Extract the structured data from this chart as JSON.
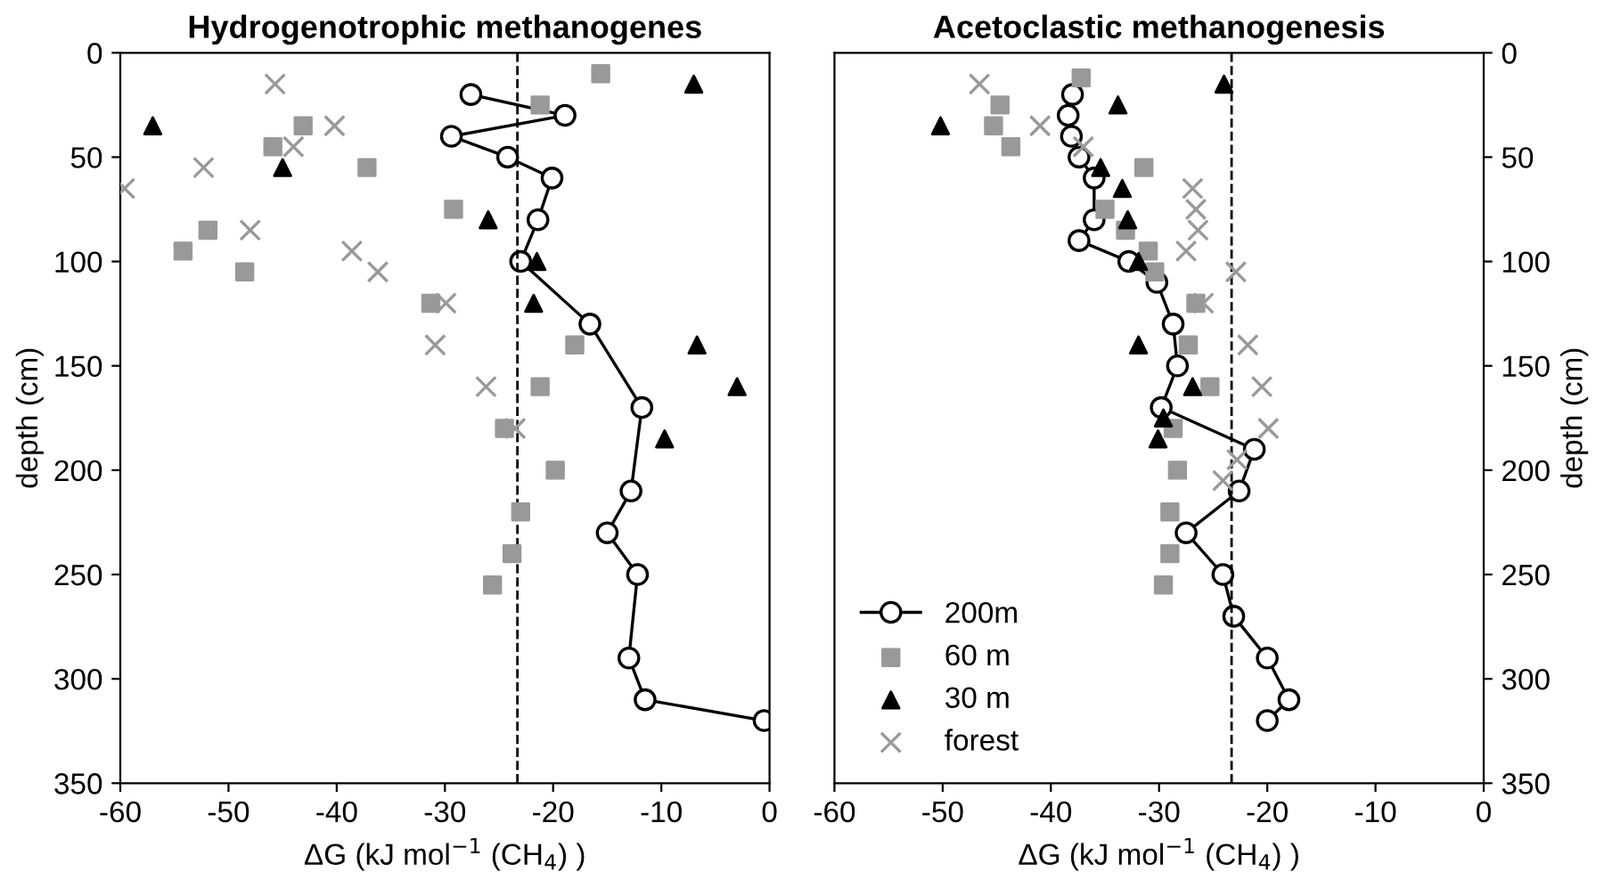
{
  "chart_data": [
    {
      "type": "scatter",
      "title": "Hydrogenotrophic methanogenes",
      "xlabel": "ΔG (kJ mol$^{−1}$ (CH$_{4}$) )",
      "ylabel": "depth (cm)",
      "xlim": [
        -60,
        0
      ],
      "xticks": [
        -60,
        -50,
        -40,
        -30,
        -20,
        -10,
        0
      ],
      "ylim": [
        350,
        0
      ],
      "yticks": [
        0,
        50,
        100,
        150,
        200,
        250,
        300,
        350
      ],
      "grid": false,
      "legend": false,
      "ref_lines": [
        {
          "axis": "x",
          "value": -23.3,
          "line_style": "dashed",
          "color": "#000000"
        }
      ],
      "series": [
        {
          "type": "line",
          "marker": "circle",
          "color": "#000000",
          "x": [
            -27.6,
            -18.9,
            -29.4,
            -24.2,
            -20.1,
            -21.4,
            -23.0,
            -16.6,
            -11.8,
            -12.8,
            -15.0,
            -12.2,
            -13,
            -11.5,
            -0.5
          ],
          "values": [
            20,
            30,
            40,
            50,
            60,
            80,
            100,
            130,
            170,
            210,
            230,
            250,
            290,
            310,
            320
          ]
        },
        {
          "marker": "square",
          "color": "#999999",
          "x": [
            -15.6,
            -21.2,
            -43.1,
            -45.9,
            -37.2,
            -29.2,
            -51.9,
            -54.2,
            -48.5,
            -31.3,
            -18.0,
            -21.2,
            -24.5,
            -19.8,
            -23.0,
            -23.8,
            -25.6
          ],
          "values": [
            10,
            25,
            35,
            45,
            55,
            75,
            85,
            95,
            105,
            120,
            140,
            160,
            180,
            200,
            220,
            240,
            255
          ]
        },
        {
          "marker": "triangle",
          "color": "#000000",
          "x": [
            -7.0,
            -57.0,
            -45.0,
            -26.0,
            -21.5,
            -21.8,
            -6.7,
            -3.0,
            -9.7
          ],
          "values": [
            15,
            35,
            55,
            80,
            100,
            120,
            140,
            160,
            185
          ]
        },
        {
          "marker": "cross",
          "color": "#999999",
          "x": [
            -45.7,
            -40.2,
            -44.0,
            -52.3,
            -59.6,
            -48.0,
            -38.6,
            -36.2,
            -29.9,
            -30.9,
            -26.2,
            -23.5
          ],
          "values": [
            15,
            35,
            45,
            55,
            65,
            85,
            95,
            105,
            120,
            140,
            160,
            180
          ]
        }
      ]
    },
    {
      "type": "scatter",
      "title": "Acetoclastic methanogenesis",
      "xlabel": "ΔG (kJ mol$^{−1}$ (CH$_{4}$) )",
      "ylabel": "depth (cm)",
      "xlim": [
        -60,
        0
      ],
      "xticks": [
        -60,
        -50,
        -40,
        -30,
        -20,
        -10,
        0
      ],
      "ylim": [
        350,
        0
      ],
      "yticks": [
        0,
        50,
        100,
        150,
        200,
        250,
        300,
        350
      ],
      "grid": false,
      "legend": "bottom left",
      "ref_lines": [
        {
          "axis": "x",
          "value": -23.3,
          "line_style": "dashed",
          "color": "#000000"
        }
      ],
      "series": [
        {
          "name": "200m",
          "type": "line",
          "marker": "circle",
          "color": "#000000",
          "x": [
            -38.0,
            -38.4,
            -38.1,
            -37.4,
            -36.0,
            -36.0,
            -37.4,
            -32.8,
            -30.2,
            -28.7,
            -28.3,
            -29.8,
            -21.2,
            -22.6,
            -27.5,
            -24.1,
            -23.1,
            -20,
            -18,
            -20
          ],
          "values": [
            20,
            30,
            40,
            50,
            60,
            80,
            90,
            100,
            110,
            130,
            150,
            170,
            190,
            210,
            230,
            250,
            270,
            290,
            310,
            320
          ]
        },
        {
          "name": "60 m",
          "marker": "square",
          "color": "#999999",
          "x": [
            -37.2,
            -44.7,
            -45.3,
            -43.7,
            -31.4,
            -35.0,
            -33.1,
            -31.0,
            -30.4,
            -26.6,
            -27.3,
            -25.3,
            -28.7,
            -28.3,
            -29.0,
            -29.0,
            -29.6
          ],
          "values": [
            12,
            25,
            35,
            45,
            55,
            75,
            85,
            95,
            105,
            120,
            140,
            160,
            180,
            200,
            220,
            240,
            255
          ]
        },
        {
          "name": "30 m",
          "marker": "triangle",
          "color": "#000000",
          "x": [
            -24.0,
            -33.8,
            -50.2,
            -35.4,
            -33.4,
            -32.9,
            -31.9,
            -31.9,
            -26.9,
            -29.6,
            -30.1
          ],
          "values": [
            15,
            25,
            35,
            55,
            65,
            80,
            100,
            140,
            160,
            175,
            185
          ]
        },
        {
          "name": "forest",
          "marker": "cross",
          "color": "#999999",
          "x": [
            -46.6,
            -41.0,
            -37.0,
            -26.9,
            -26.6,
            -26.4,
            -27.5,
            -22.9,
            -25.9,
            -21.8,
            -20.5,
            -19.9,
            -22.8,
            -24.1
          ],
          "values": [
            15,
            35,
            45,
            65,
            75,
            85,
            95,
            105,
            120,
            140,
            160,
            180,
            195,
            205
          ]
        }
      ]
    }
  ]
}
